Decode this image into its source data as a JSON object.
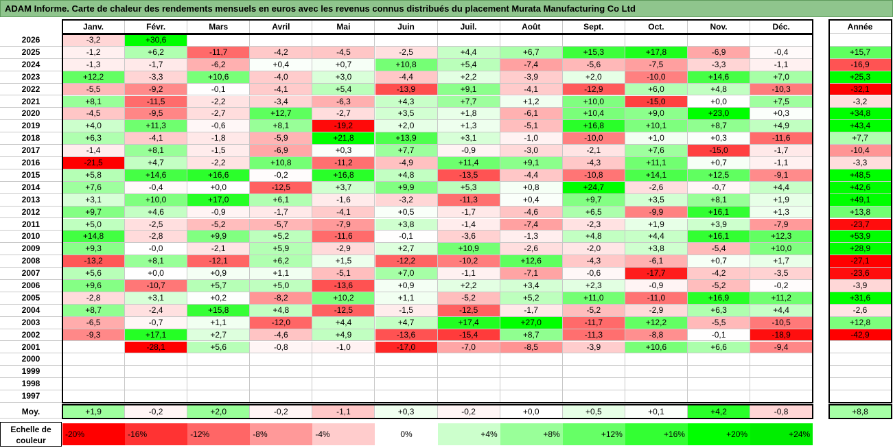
{
  "title": "ADAM Informe. Carte de chaleur des rendements mensuels en euros avec les revenus connus distribués du placement Murata Manufacturing Co Ltd",
  "chart_data": {
    "type": "heatmap",
    "months": [
      "Janv.",
      "Févr.",
      "Mars",
      "Avril",
      "Mai",
      "Juin",
      "Juil.",
      "Août",
      "Sept.",
      "Oct.",
      "Nov.",
      "Déc."
    ],
    "year_header": "Année",
    "rows": [
      {
        "year": "2026",
        "values": [
          "-3,2",
          "+30,6",
          "",
          "",
          "",
          "",
          "",
          "",
          "",
          "",
          "",
          ""
        ],
        "annual": ""
      },
      {
        "year": "2025",
        "values": [
          "-1,2",
          "+6,2",
          "-11,7",
          "-4,2",
          "-4,5",
          "-2,5",
          "+4,4",
          "+6,7",
          "+15,3",
          "+17,8",
          "-6,9",
          "-0,4"
        ],
        "annual": "+15,7"
      },
      {
        "year": "2024",
        "values": [
          "-1,3",
          "-1,7",
          "-6,2",
          "+0,4",
          "+0,7",
          "+10,8",
          "+5,4",
          "-7,4",
          "-5,6",
          "-7,5",
          "-3,3",
          "-1,1"
        ],
        "annual": "-16,9"
      },
      {
        "year": "2023",
        "values": [
          "+12,2",
          "-3,3",
          "+10,6",
          "-4,0",
          "+3,0",
          "-4,4",
          "+2,2",
          "-3,9",
          "+2,0",
          "-10,0",
          "+14,6",
          "+7,0"
        ],
        "annual": "+25,3"
      },
      {
        "year": "2022",
        "values": [
          "-5,5",
          "-9,2",
          "-0,1",
          "-4,1",
          "+5,4",
          "-13,9",
          "+9,1",
          "-4,1",
          "-12,9",
          "+6,0",
          "+4,8",
          "-10,3"
        ],
        "annual": "-32,1"
      },
      {
        "year": "2021",
        "values": [
          "+8,1",
          "-11,5",
          "-2,2",
          "-3,4",
          "-6,3",
          "+4,3",
          "+7,7",
          "+1,2",
          "+10,0",
          "-15,0",
          "+0,0",
          "+7,5"
        ],
        "annual": "-3,2"
      },
      {
        "year": "2020",
        "values": [
          "-4,5",
          "-9,5",
          "-2,7",
          "+12,7",
          "-2,7",
          "+3,5",
          "+1,8",
          "-6,1",
          "+10,4",
          "+9,0",
          "+23,0",
          "+0,3"
        ],
        "annual": "+34,8"
      },
      {
        "year": "2019",
        "values": [
          "+4,0",
          "+11,3",
          "-0,6",
          "+8,1",
          "-19,2",
          "+2,0",
          "+1,3",
          "-5,1",
          "+16,8",
          "+10,1",
          "+8,7",
          "+4,9"
        ],
        "annual": "+43,4"
      },
      {
        "year": "2018",
        "values": [
          "+6,3",
          "-4,1",
          "-1,8",
          "-5,9",
          "+21,8",
          "+13,9",
          "+3,1",
          "-1,0",
          "-10,0",
          "+1,0",
          "+0,3",
          "-11,6"
        ],
        "annual": "+7,7"
      },
      {
        "year": "2017",
        "values": [
          "-1,4",
          "+8,1",
          "-1,5",
          "-6,9",
          "+0,3",
          "+7,7",
          "-0,9",
          "-3,0",
          "-2,1",
          "+7,6",
          "-15,0",
          "-1,7"
        ],
        "annual": "-10,4"
      },
      {
        "year": "2016",
        "values": [
          "-21,5",
          "+4,7",
          "-2,2",
          "+10,8",
          "-11,2",
          "-4,9",
          "+11,4",
          "+9,1",
          "-4,3",
          "+11,1",
          "+0,7",
          "-1,1"
        ],
        "annual": "-3,3"
      },
      {
        "year": "2015",
        "values": [
          "+5,8",
          "+14,6",
          "+16,6",
          "-0,2",
          "+16,8",
          "+4,8",
          "-13,5",
          "-4,4",
          "-10,8",
          "+14,1",
          "+12,5",
          "-9,1"
        ],
        "annual": "+48,5"
      },
      {
        "year": "2014",
        "values": [
          "+7,6",
          "-0,4",
          "+0,0",
          "-12,5",
          "+3,7",
          "+9,9",
          "+5,3",
          "+0,8",
          "+24,7",
          "-2,6",
          "-0,7",
          "+4,4"
        ],
        "annual": "+42,6"
      },
      {
        "year": "2013",
        "values": [
          "+3,1",
          "+10,0",
          "+17,0",
          "+6,1",
          "-1,6",
          "-3,2",
          "-11,3",
          "+0,4",
          "+9,7",
          "+3,5",
          "+8,1",
          "+1,9"
        ],
        "annual": "+49,1"
      },
      {
        "year": "2012",
        "values": [
          "+9,7",
          "+4,6",
          "-0,9",
          "-1,7",
          "-4,1",
          "+0,5",
          "-1,7",
          "-4,6",
          "+6,5",
          "-9,9",
          "+16,1",
          "+1,3"
        ],
        "annual": "+13,8"
      },
      {
        "year": "2011",
        "values": [
          "+5,0",
          "-2,5",
          "-5,2",
          "-5,7",
          "-7,9",
          "+3,8",
          "-1,4",
          "-7,4",
          "-2,3",
          "+1,9",
          "+3,9",
          "-7,9"
        ],
        "annual": "-23,7"
      },
      {
        "year": "2010",
        "values": [
          "+14,8",
          "-2,8",
          "+9,9",
          "+5,2",
          "-11,6",
          "-0,1",
          "-3,6",
          "-1,3",
          "+4,8",
          "+4,4",
          "+16,1",
          "+12,3"
        ],
        "annual": "+53,9"
      },
      {
        "year": "2009",
        "values": [
          "+9,3",
          "-0,0",
          "-2,1",
          "+5,9",
          "-2,9",
          "+2,7",
          "+10,9",
          "-2,6",
          "-2,0",
          "+3,8",
          "-5,4",
          "+10,0"
        ],
        "annual": "+28,9"
      },
      {
        "year": "2008",
        "values": [
          "-13,2",
          "+8,1",
          "-12,1",
          "+6,2",
          "+1,5",
          "-12,2",
          "-10,2",
          "+12,6",
          "-4,3",
          "-6,1",
          "+0,7",
          "+1,7"
        ],
        "annual": "-27,1"
      },
      {
        "year": "2007",
        "values": [
          "+5,6",
          "+0,0",
          "+0,9",
          "+1,1",
          "-5,1",
          "+7,0",
          "-1,1",
          "-7,1",
          "-0,6",
          "-17,7",
          "-4,2",
          "-3,5"
        ],
        "annual": "-23,6"
      },
      {
        "year": "2006",
        "values": [
          "+9,6",
          "-10,7",
          "+5,7",
          "+5,0",
          "-13,6",
          "+0,9",
          "+2,2",
          "+3,4",
          "+2,3",
          "-0,9",
          "-5,2",
          "-0,2"
        ],
        "annual": "-3,9"
      },
      {
        "year": "2005",
        "values": [
          "-2,8",
          "+3,1",
          "+0,2",
          "-8,2",
          "+10,2",
          "+1,1",
          "-5,2",
          "+5,2",
          "+11,0",
          "-11,0",
          "+16,9",
          "+11,2"
        ],
        "annual": "+31,6"
      },
      {
        "year": "2004",
        "values": [
          "+8,7",
          "-2,4",
          "+15,8",
          "+4,8",
          "-12,5",
          "-1,5",
          "-12,5",
          "-1,7",
          "-5,2",
          "-2,9",
          "+6,3",
          "+4,4"
        ],
        "annual": "-2,6"
      },
      {
        "year": "2003",
        "values": [
          "-6,5",
          "-0,7",
          "+1,1",
          "-12,0",
          "+4,4",
          "+4,7",
          "+17,4",
          "+27,0",
          "-11,7",
          "+12,2",
          "-5,5",
          "-10,5"
        ],
        "annual": "+12,8"
      },
      {
        "year": "2002",
        "values": [
          "-9,3",
          "+17,1",
          "+2,7",
          "-4,6",
          "+4,9",
          "-13,6",
          "-15,4",
          "+8,7",
          "-11,3",
          "-8,8",
          "-0,1",
          "-18,9"
        ],
        "annual": "-42,9"
      },
      {
        "year": "2001",
        "values": [
          "",
          "-28,1",
          "+5,6",
          "-0,8",
          "-1,0",
          "-17,0",
          "-7,0",
          "-8,5",
          "-3,9",
          "+10,6",
          "+6,6",
          "-9,4"
        ],
        "annual": ""
      },
      {
        "year": "2000",
        "values": [
          "",
          "",
          "",
          "",
          "",
          "",
          "",
          "",
          "",
          "",
          "",
          ""
        ],
        "annual": ""
      },
      {
        "year": "1999",
        "values": [
          "",
          "",
          "",
          "",
          "",
          "",
          "",
          "",
          "",
          "",
          "",
          ""
        ],
        "annual": ""
      },
      {
        "year": "1998",
        "values": [
          "",
          "",
          "",
          "",
          "",
          "",
          "",
          "",
          "",
          "",
          "",
          ""
        ],
        "annual": ""
      },
      {
        "year": "1997",
        "values": [
          "",
          "",
          "",
          "",
          "",
          "",
          "",
          "",
          "",
          "",
          "",
          ""
        ],
        "annual": ""
      }
    ],
    "average": {
      "label": "Moy.",
      "values": [
        "+1,9",
        "-0,2",
        "+2,0",
        "-0,2",
        "-1,1",
        "+0,3",
        "-0,2",
        "+0,0",
        "+0,5",
        "+0,1",
        "+4,2",
        "-0,8"
      ],
      "annual": "+8,8"
    },
    "legend": {
      "label_line1": "Echelle de",
      "label_line2": "couleur",
      "stops": [
        {
          "label": "-20%",
          "value": -20,
          "color": "#ff0000"
        },
        {
          "label": "-16%",
          "value": -16,
          "color": "#ff3333"
        },
        {
          "label": "-12%",
          "value": -12,
          "color": "#ff6666"
        },
        {
          "label": "-8%",
          "value": -8,
          "color": "#ff9999"
        },
        {
          "label": "-4%",
          "value": -4,
          "color": "#ffcccc"
        },
        {
          "label": "0%",
          "value": 0,
          "color": "#ffffff"
        },
        {
          "label": "+4%",
          "value": 4,
          "color": "#ccffcc"
        },
        {
          "label": "+8%",
          "value": 8,
          "color": "#99ff99"
        },
        {
          "label": "+12%",
          "value": 12,
          "color": "#66ff66"
        },
        {
          "label": "+16%",
          "value": 16,
          "color": "#33ff33"
        },
        {
          "label": "+20%",
          "value": 20,
          "color": "#00ff00"
        },
        {
          "label": "+24%",
          "value": 24,
          "color": "#00ee00"
        }
      ]
    }
  }
}
